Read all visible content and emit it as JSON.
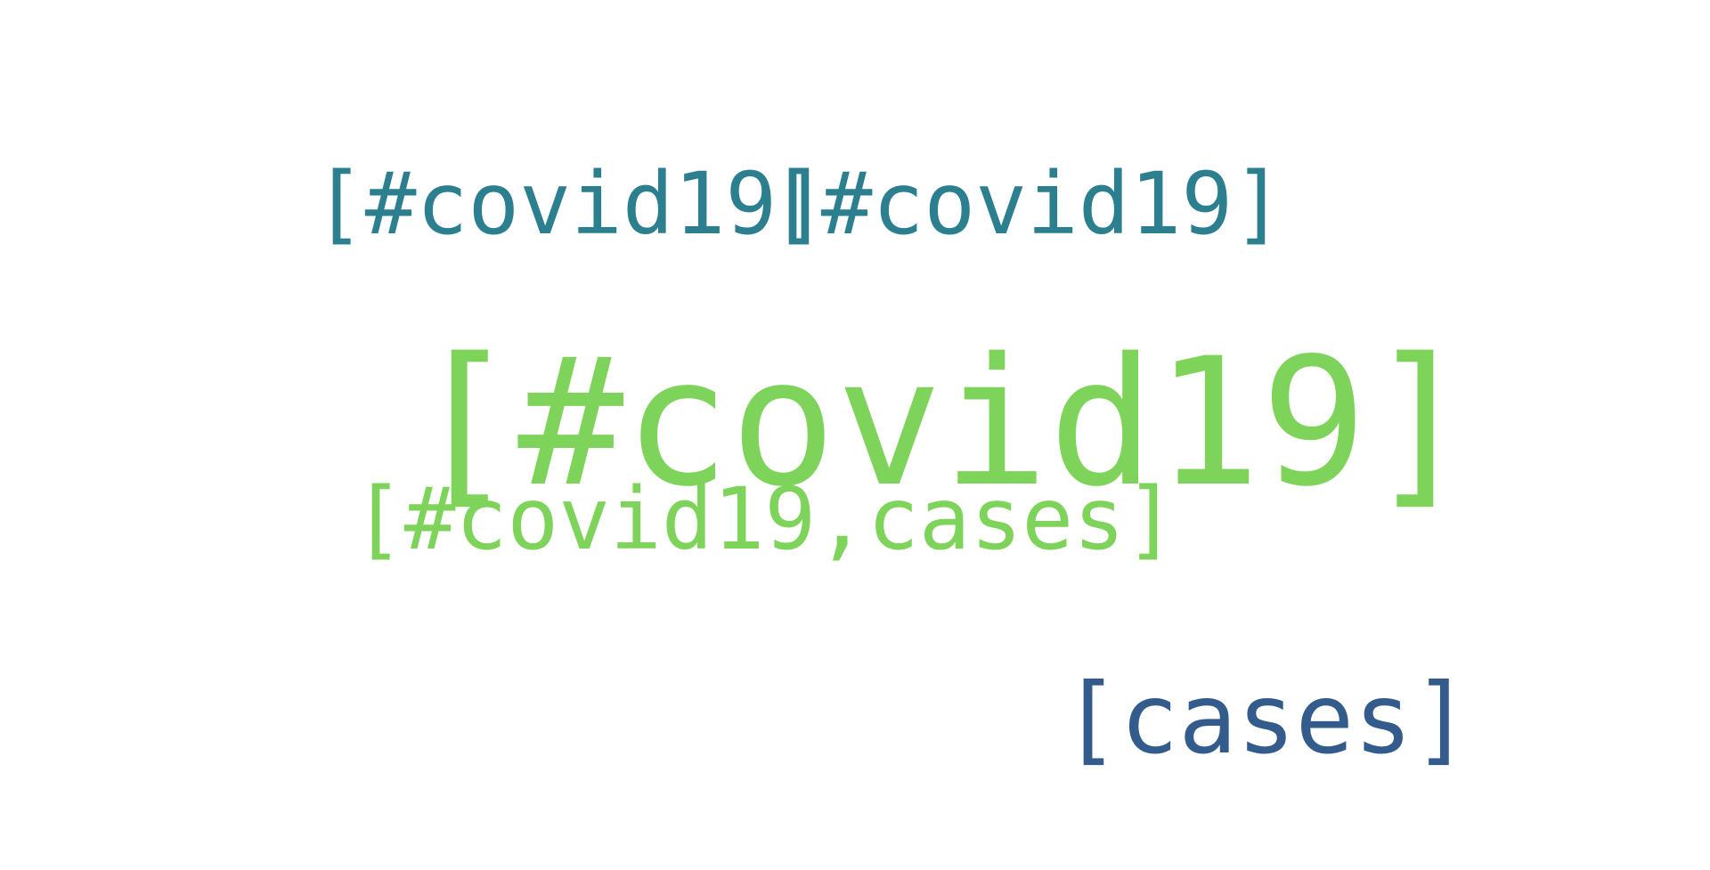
{
  "words": [
    {
      "text": "[#covid19]",
      "color": "#7ed35a"
    },
    {
      "text": "[#covid19]",
      "color": "#2c7f8f"
    },
    {
      "text": "[#covid19]",
      "color": "#2c7f8f"
    },
    {
      "text": "[#covid19,cases]",
      "color": "#7ed35a"
    },
    {
      "text": "[cases]",
      "color": "#335c8c"
    }
  ]
}
